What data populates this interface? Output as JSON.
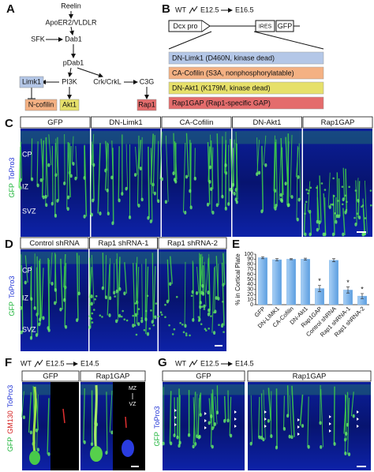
{
  "panel_a": {
    "label": "A",
    "nodes": [
      "Reelin",
      "ApoER2/VLDLR",
      "SFK",
      "Dab1",
      "pDab1",
      "Limk1",
      "PI3K",
      "Crk/CrkL",
      "C3G",
      "N-cofilin",
      "Akt1",
      "Rap1"
    ]
  },
  "panel_b": {
    "label": "B",
    "genotype": "WT",
    "from": "E12.5",
    "to": "E16.5",
    "promoter": "Dcx pro",
    "ires": "IRES",
    "reporter": "GFP",
    "constructs": [
      "DN-Limk1 (D460N, kinase dead)",
      "CA-Cofilin (S3A, nonphosphorylatable)",
      "DN-Akt1 (K179M, kinase dead)",
      "Rap1GAP (Rap1-specific GAP)"
    ]
  },
  "panel_c": {
    "label": "C",
    "columns": [
      "GFP",
      "DN-Limk1",
      "CA-Cofilin",
      "DN-Akt1",
      "Rap1GAP"
    ],
    "stain": [
      "GFP",
      "ToPro3"
    ],
    "zones": [
      "CP",
      "IZ",
      "SVZ"
    ]
  },
  "panel_d": {
    "label": "D",
    "columns": [
      "Control shRNA",
      "Rap1 shRNA-1",
      "Rap1 shRNA-2"
    ],
    "stain": [
      "GFP",
      "ToPro3"
    ],
    "zones": [
      "CP",
      "IZ",
      "SVZ"
    ]
  },
  "chart_data": {
    "type": "bar",
    "panel_label": "E",
    "y_label": "% in Cortical Plate",
    "categories": [
      "GFP",
      "DN-LIMK1",
      "CA-Cofilin",
      "DN-Akt1",
      "Rap1GAP",
      "Control shRNA",
      "Rap1 shRNA-1",
      "Rap1 shRNA-2"
    ],
    "values": [
      93,
      89,
      90,
      90,
      32,
      88,
      29,
      17
    ],
    "errors": [
      2,
      2,
      1,
      2,
      6,
      3,
      6,
      5
    ],
    "markers": [
      null,
      null,
      null,
      null,
      "*",
      null,
      "*",
      "*"
    ],
    "color": "#7db4e8",
    "ylim": [
      0,
      100
    ],
    "yticks": [
      0,
      10,
      20,
      30,
      40,
      50,
      60,
      70,
      80,
      90,
      100
    ]
  },
  "panel_f": {
    "label": "F",
    "genotype": "WT",
    "from": "E12.5",
    "to": "E14.5",
    "columns": [
      "GFP",
      "Rap1GAP"
    ],
    "stain": [
      "GFP",
      "GM130",
      "ToPro3"
    ],
    "orientation": [
      "MZ",
      "VZ"
    ]
  },
  "panel_g": {
    "label": "G",
    "genotype": "WT",
    "from": "E12.5",
    "to": "E14.5",
    "columns": [
      "GFP",
      "Rap1GAP"
    ],
    "stain": [
      "GFP",
      "ToPro3"
    ]
  }
}
